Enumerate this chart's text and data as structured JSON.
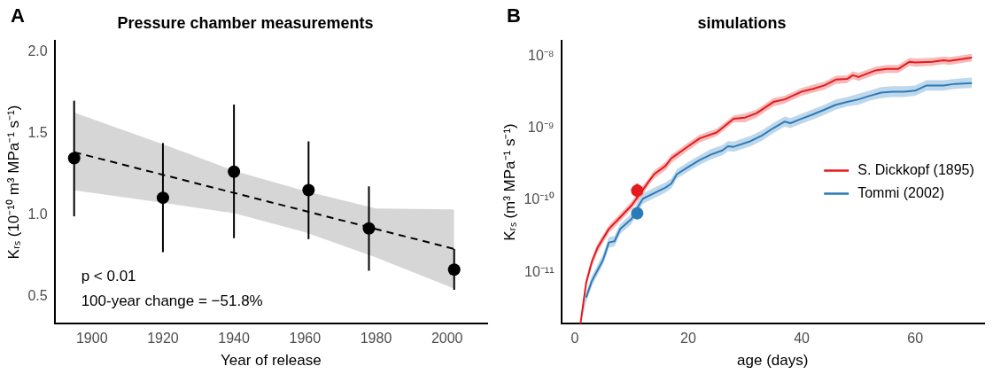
{
  "chart_data": [
    {
      "type": "scatter",
      "title": "Pressure chamber measurements",
      "xlabel": "Year of release",
      "ylabel": "Kᵣₛ (10⁻¹⁰ m³ MPa⁻¹ s⁻¹)",
      "xlim": [
        1889.5,
        2011.3
      ],
      "ylim": [
        0.33,
        2.07
      ],
      "xticks": [
        1900,
        1920,
        1940,
        1960,
        1980,
        2000
      ],
      "yticks": [
        0.5,
        {
          "value": 1,
          "label": "1.0"
        },
        1.5,
        {
          "value": 2,
          "label": "2.0"
        }
      ],
      "grid": false,
      "legend": false,
      "annotations": [
        "A",
        "p < 0.01",
        "100-year change = −51.8%"
      ],
      "series": [
        {
          "type": "line",
          "color": "#000000",
          "line_style": "dashed",
          "marker": "none",
          "x": [
            1895,
            1920,
            1940,
            1960,
            1980,
            2002
          ],
          "values": [
            1.384,
            1.245,
            1.134,
            1.023,
            0.912,
            0.79
          ],
          "lower": [
            1.149,
            1.073,
            1.009,
            0.893,
            0.737,
            0.547
          ],
          "upper": [
            1.627,
            1.433,
            1.27,
            1.145,
            1.038,
            1.032
          ]
        },
        {
          "type": "scatter",
          "color": "#000000",
          "marker": "circle",
          "x": [
            1895,
            1920,
            1940,
            1961,
            1978,
            2002
          ],
          "values": [
            1.347,
            1.104,
            1.264,
            1.151,
            0.916,
            0.663
          ],
          "errors": [
            [
              0.99,
              1.7
            ],
            [
              0.77,
              1.44
            ],
            [
              0.856,
              1.676
            ],
            [
              0.85,
              1.45
            ],
            [
              0.656,
              1.174
            ],
            [
              0.539,
              0.79
            ]
          ]
        }
      ]
    },
    {
      "type": "line",
      "title": "simulations",
      "xlabel": "age (days)",
      "ylabel": "Kᵣₛ (m³ MPa⁻¹ s⁻¹)",
      "log": "y",
      "xlim": [
        -2.4,
        72.15
      ],
      "ylim": [
        1.94e-12,
        1.64e-08
      ],
      "xticks": [
        0,
        20,
        40,
        60
      ],
      "yticks": [
        {
          "value": 1e-11,
          "label": "10⁻¹¹"
        },
        {
          "value": 1e-10,
          "label": "10⁻¹⁰"
        },
        {
          "value": 1e-09,
          "label": "10⁻⁹"
        },
        {
          "value": 1e-08,
          "label": "10⁻⁸"
        }
      ],
      "grid": false,
      "legend": "right",
      "annotations": [
        "B"
      ],
      "series": [
        {
          "name": "S. Dickkopf (1895)",
          "color": "#e41a1c",
          "marker": "none",
          "x": [
            1,
            2,
            3,
            4,
            6,
            8,
            10,
            12,
            13,
            14,
            16,
            17,
            20,
            22,
            25,
            28,
            30,
            32,
            35,
            37,
            40,
            42,
            44,
            46,
            48,
            49,
            50,
            53,
            55,
            57,
            59,
            60,
            63,
            65,
            66,
            70
          ],
          "values": [
            1.94e-12,
            7.2e-12,
            1.4e-11,
            2.2e-11,
            4e-11,
            5.8e-11,
            8.5e-11,
            1.4e-10,
            1.8e-10,
            2.3e-10,
            3e-10,
            3.8e-10,
            5.6e-10,
            7.2e-10,
            8.7e-10,
            1.35e-09,
            1.4e-09,
            1.6e-09,
            2.3e-09,
            2.5e-09,
            3.2e-09,
            3.5e-09,
            3.9e-09,
            4.7e-09,
            4.8e-09,
            5.4e-09,
            5.1e-09,
            6.3e-09,
            6.6e-09,
            6.6e-09,
            8.3e-09,
            8.1e-09,
            8.3e-09,
            8.7e-09,
            8.5e-09,
            9.5e-09
          ],
          "lower": [
            1.94e-12,
            6.3e-12,
            1.2e-11,
            1.9e-11,
            3.5e-11,
            5.1e-11,
            7.5e-11,
            1.2e-10,
            1.6e-10,
            2e-10,
            2.6e-10,
            3.3e-10,
            4.9e-10,
            6.3e-10,
            7.7e-10,
            1.2e-09,
            1.2e-09,
            1.4e-09,
            2e-09,
            2.2e-09,
            2.8e-09,
            3.1e-09,
            3.4e-09,
            4.1e-09,
            4.2e-09,
            4.8e-09,
            4.5e-09,
            5.5e-09,
            5.8e-09,
            5.8e-09,
            7.3e-09,
            7.1e-09,
            7.3e-09,
            7.7e-09,
            7.5e-09,
            8.4e-09
          ],
          "upper": [
            2.1e-12,
            8.1e-12,
            1.6e-11,
            2.5e-11,
            4.5e-11,
            6.6e-11,
            9.6e-11,
            1.6e-10,
            2e-10,
            2.6e-10,
            3.4e-10,
            4.3e-10,
            6.3e-10,
            8.1e-10,
            9.8e-10,
            1.5e-09,
            1.6e-09,
            1.8e-09,
            2.6e-09,
            2.8e-09,
            3.6e-09,
            4e-09,
            4.4e-09,
            5.3e-09,
            5.4e-09,
            6.1e-09,
            5.8e-09,
            7.1e-09,
            7.5e-09,
            7.5e-09,
            9.4e-09,
            9.2e-09,
            9.4e-09,
            9.8e-09,
            9.6e-09,
            1.07e-08
          ]
        },
        {
          "name": "Tommi (2002)",
          "color": "#2b7bba",
          "marker": "none",
          "x": [
            1,
            2,
            3,
            5,
            6,
            7,
            8,
            10,
            11,
            12,
            14,
            16,
            17,
            18,
            20,
            22,
            24,
            26,
            27,
            28,
            31,
            33,
            35,
            37,
            38,
            40,
            42,
            44,
            46,
            48,
            50,
            52,
            54,
            56,
            58,
            60,
            62,
            65,
            67,
            70
          ],
          "values": [
            null,
            4.5e-12,
            7.6e-12,
            1.5e-11,
            2.6e-11,
            2.7e-11,
            4e-11,
            5.5e-11,
            7.8e-11,
            1.05e-10,
            1.26e-10,
            1.5e-10,
            1.7e-10,
            2.3e-10,
            2.9e-10,
            3.6e-10,
            4.3e-10,
            4.9e-10,
            5.6e-10,
            5.5e-10,
            6.6e-10,
            7.9e-10,
            1e-09,
            1.23e-09,
            1.17e-09,
            1.35e-09,
            1.55e-09,
            1.8e-09,
            2.1e-09,
            2.3e-09,
            2.5e-09,
            2.8e-09,
            3.1e-09,
            3.2e-09,
            3.2e-09,
            3.3e-09,
            3.9e-09,
            3.9e-09,
            4.1e-09,
            4.2e-09
          ],
          "lower": [
            1.94e-12,
            3.8e-12,
            6.5e-12,
            1.3e-11,
            2.2e-11,
            2.3e-11,
            3.4e-11,
            4.7e-11,
            6.6e-11,
            8.9e-11,
            1.07e-10,
            1.28e-10,
            1.45e-10,
            2e-10,
            2.5e-10,
            3.1e-10,
            3.7e-10,
            4.2e-10,
            4.8e-10,
            4.7e-10,
            5.6e-10,
            6.7e-10,
            8.5e-10,
            1.05e-09,
            1e-09,
            1.15e-09,
            1.32e-09,
            1.53e-09,
            1.8e-09,
            2e-09,
            2.1e-09,
            2.4e-09,
            2.6e-09,
            2.7e-09,
            2.7e-09,
            2.8e-09,
            3.3e-09,
            3.3e-09,
            3.5e-09,
            3.6e-09
          ],
          "upper": [
            2.2e-12,
            5.3e-12,
            9e-12,
            1.8e-11,
            3.1e-11,
            3.2e-11,
            4.7e-11,
            6.5e-11,
            9.2e-11,
            1.24e-10,
            1.49e-10,
            1.77e-10,
            2e-10,
            2.7e-10,
            3.4e-10,
            4.2e-10,
            5.1e-10,
            5.8e-10,
            6.6e-10,
            6.5e-10,
            7.8e-10,
            9.3e-10,
            1.18e-09,
            1.45e-09,
            1.38e-09,
            1.59e-09,
            1.83e-09,
            2.1e-09,
            2.5e-09,
            2.7e-09,
            3e-09,
            3.3e-09,
            3.7e-09,
            3.8e-09,
            3.8e-09,
            3.9e-09,
            4.6e-09,
            4.6e-09,
            4.8e-09,
            5e-09
          ]
        },
        {
          "type": "scatter",
          "color": "#e41a1c",
          "marker": "circle",
          "x": [
            11
          ],
          "values": [
            1.36e-10
          ],
          "errors": [
            [
              1.05e-10,
              1.7e-10
            ]
          ]
        },
        {
          "type": "scatter",
          "color": "#2b7bba",
          "marker": "circle",
          "x": [
            11
          ],
          "values": [
            6.6e-11
          ],
          "errors": [
            [
              5.5e-11,
              7.8e-11
            ]
          ]
        }
      ]
    }
  ]
}
